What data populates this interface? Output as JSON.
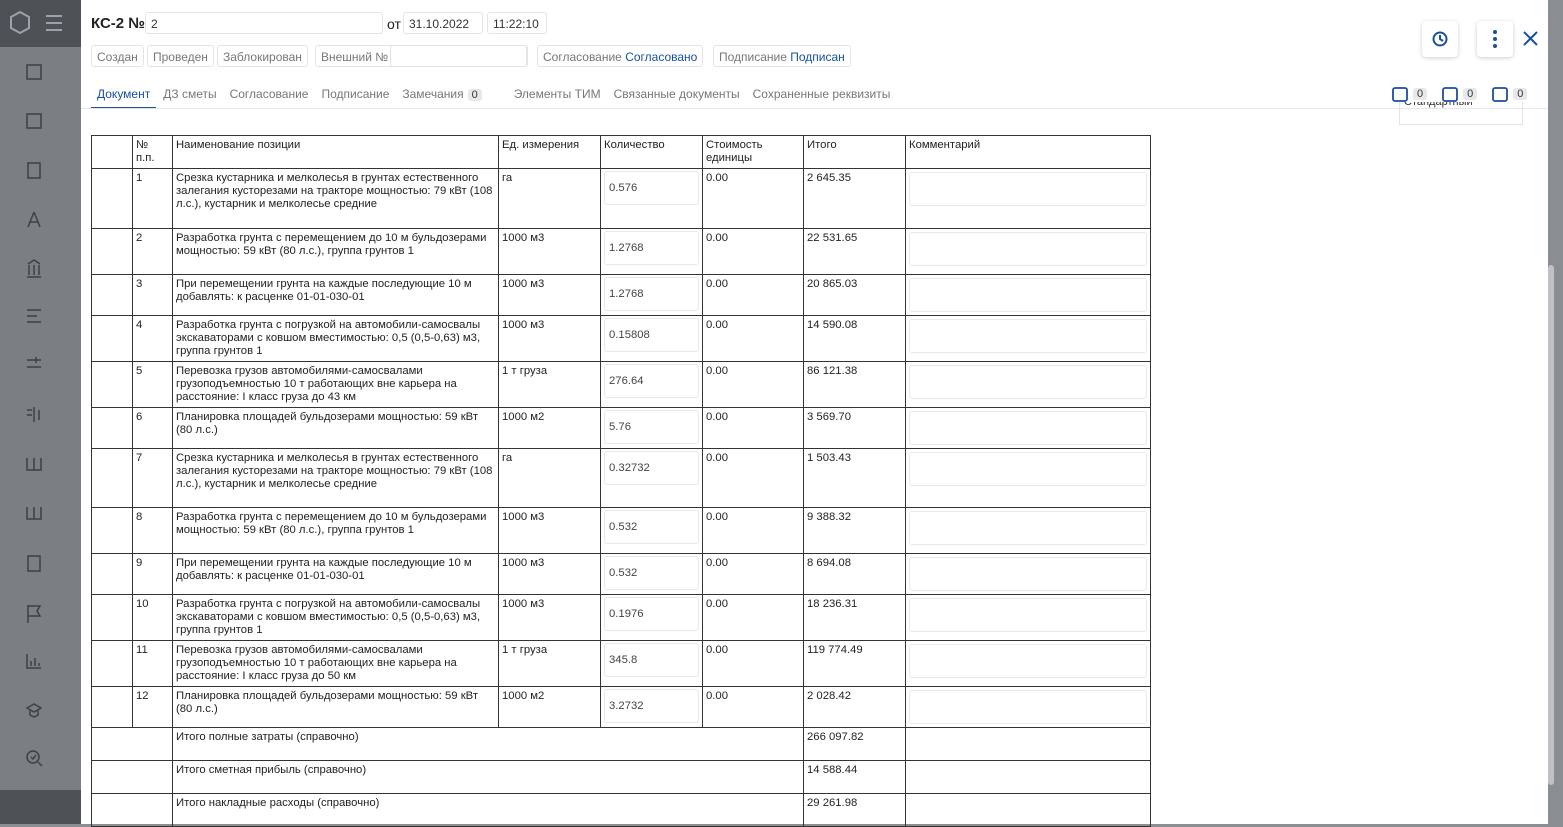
{
  "header": {
    "title": "КС-2 №",
    "number": "2",
    "from": "от",
    "date": "31.10.2022",
    "time": "11:22:10"
  },
  "statuses": [
    "Создан",
    "Проведен",
    "Заблокирован"
  ],
  "external": {
    "label": "Внешний №"
  },
  "approval": {
    "label": "Согласование",
    "value": "Согласовано"
  },
  "signing": {
    "label": "Подписание",
    "value": "Подписан"
  },
  "tabs": [
    "Документ",
    "ДЗ сметы",
    "Согласование",
    "Подписание",
    "Замечания",
    "Элементы ТИМ",
    "Связанные документы",
    "Сохраненные реквизиты"
  ],
  "remarks_count": "0",
  "counters": [
    "0",
    "0",
    "0"
  ],
  "view_select": "Стандартный",
  "table": {
    "headers": [
      "№ п.п.",
      "Наименование позиции",
      "Ед. измерения",
      "Количество",
      "Стоимость единицы",
      "Итого",
      "Комментарий"
    ],
    "rows": [
      [
        "1",
        "Срезка кустарника и мелколесья в грунтах естественного залегания кусторезами на тракторе мощностью: 79 кВт (108 л.с.), кустарник и мелколесье средние",
        "га",
        "0.576",
        "0.00",
        "2 645.35"
      ],
      [
        "2",
        "Разработка грунта с перемещением до 10 м бульдозерами мощностью: 59 кВт (80 л.с.), группа грунтов 1",
        "1000 м3",
        "1.2768",
        "0.00",
        "22 531.65"
      ],
      [
        "3",
        "При перемещении грунта на каждые последующие 10 м добавлять: к расценке 01-01-030-01",
        "1000 м3",
        "1.2768",
        "0.00",
        "20 865.03"
      ],
      [
        "4",
        "Разработка грунта с погрузкой на автомобили-самосвалы экскаваторами с ковшом вместимостью: 0,5 (0,5-0,63) м3, группа грунтов 1",
        "1000 м3",
        "0.15808",
        "0.00",
        "14 590.08"
      ],
      [
        "5",
        "Перевозка грузов автомобилями-самосвалами грузоподъемностью 10 т работающих вне карьера на расстояние: I класс груза до 43 км",
        "1 т груза",
        "276.64",
        "0.00",
        "86 121.38"
      ],
      [
        "6",
        "Планировка площадей бульдозерами мощностью: 59 кВт (80 л.с.)",
        "1000 м2",
        "5.76",
        "0.00",
        "3 569.70"
      ],
      [
        "7",
        "Срезка кустарника и мелколесья в грунтах естественного залегания кусторезами на тракторе мощностью: 79 кВт (108 л.с.), кустарник и мелколесье средние",
        "га",
        "0.32732",
        "0.00",
        "1 503.43"
      ],
      [
        "8",
        "Разработка грунта с перемещением до 10 м бульдозерами мощностью: 59 кВт (80 л.с.), группа грунтов 1",
        "1000 м3",
        "0.532",
        "0.00",
        "9 388.32"
      ],
      [
        "9",
        "При перемещении грунта на каждые последующие 10 м добавлять: к расценке 01-01-030-01",
        "1000 м3",
        "0.532",
        "0.00",
        "8 694.08"
      ],
      [
        "10",
        "Разработка грунта с погрузкой на автомобили-самосвалы экскаваторами с ковшом вместимостью: 0,5 (0,5-0,63) м3, группа грунтов 1",
        "1000 м3",
        "0.1976",
        "0.00",
        "18 236.31"
      ],
      [
        "11",
        "Перевозка грузов автомобилями-самосвалами грузоподъемностью 10 т работающих вне карьера на расстояние: I класс груза до 50 км",
        "1 т груза",
        "345.8",
        "0.00",
        "119 774.49"
      ],
      [
        "12",
        "Планировка площадей бульдозерами мощностью: 59 кВт (80 л.с.)",
        "1000 м2",
        "3.2732",
        "0.00",
        "2 028.42"
      ]
    ],
    "totals": [
      [
        "Итого полные затраты (справочно)",
        "266 097.82"
      ],
      [
        "Итого сметная прибыль (справочно)",
        "14 588.44"
      ],
      [
        "Итого накладные расходы (справочно)",
        "29 261.98"
      ]
    ]
  }
}
